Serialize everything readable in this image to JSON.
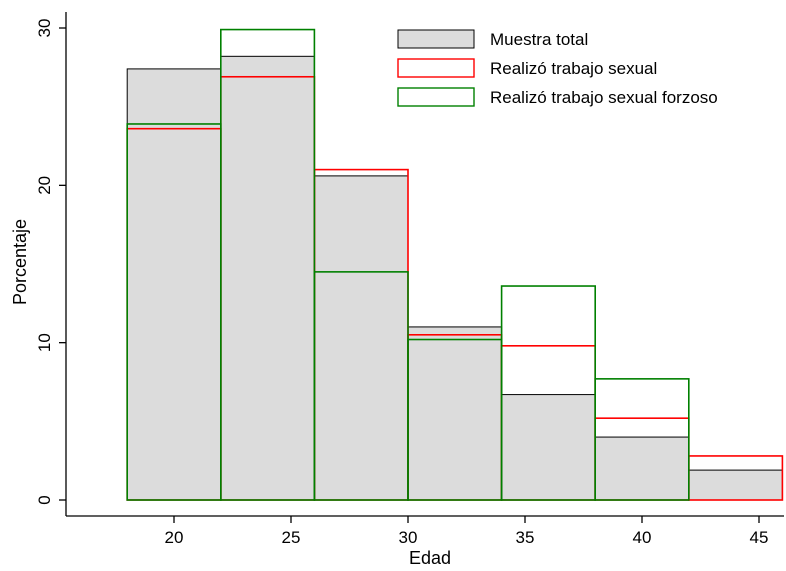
{
  "chart_data": {
    "type": "bar",
    "title": "",
    "xlabel": "Edad",
    "ylabel": "Porcentaje",
    "bin_edges": [
      18,
      22,
      26,
      30,
      34,
      38,
      42,
      46
    ],
    "xlim": [
      13,
      46
    ],
    "ylim": [
      0,
      31
    ],
    "x_ticks": [
      20,
      25,
      30,
      35,
      40,
      45
    ],
    "y_ticks": [
      0,
      10,
      20,
      30
    ],
    "x_tick_labels": [
      "20",
      "25",
      "30",
      "35",
      "40",
      "45"
    ],
    "y_tick_labels": [
      "0",
      "10",
      "20",
      "30"
    ],
    "grid": false,
    "legend_position": "top-right",
    "series": [
      {
        "name": "Muestra total",
        "values": [
          27.4,
          28.2,
          20.6,
          11.0,
          6.7,
          4.0,
          1.9
        ],
        "fill": "#dcdcdc",
        "stroke": "#000000"
      },
      {
        "name": "Realizó trabajo sexual",
        "values": [
          23.6,
          26.9,
          21.0,
          10.5,
          9.8,
          5.2,
          2.8
        ],
        "fill": "none",
        "stroke": "#ff0000"
      },
      {
        "name": "Realizó trabajo sexual forzoso",
        "values": [
          23.9,
          29.9,
          14.5,
          10.2,
          13.6,
          7.7,
          0
        ],
        "fill": "none",
        "stroke": "#008000"
      }
    ]
  }
}
